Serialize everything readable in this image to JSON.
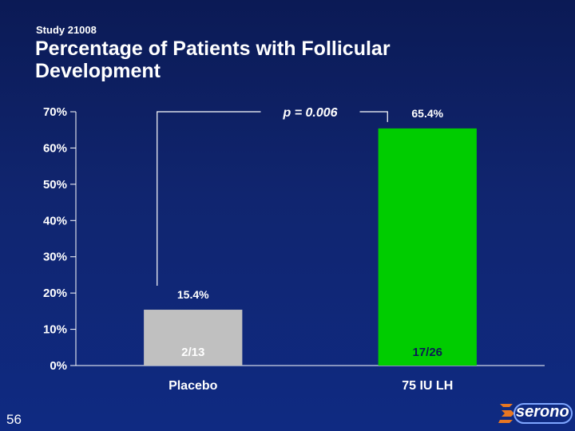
{
  "header": {
    "study": "Study 21008",
    "title": "Percentage of Patients with Follicular Development"
  },
  "page_number": "56",
  "logo": {
    "text": "serono",
    "icon": "serono-s-icon"
  },
  "colors": {
    "placebo": "#c0c0c0",
    "lh": "#00cc00",
    "background": "#10256f"
  },
  "chart_data": {
    "type": "bar",
    "categories": [
      "Placebo",
      "75 IU LH"
    ],
    "values": [
      15.4,
      65.4
    ],
    "value_labels": [
      "15.4%",
      "65.4%"
    ],
    "counts": [
      "2/13",
      "17/26"
    ],
    "yticks": [
      "0%",
      "10%",
      "20%",
      "30%",
      "40%",
      "50%",
      "60%",
      "70%"
    ],
    "ylim": [
      0,
      70
    ],
    "annotation": "p = 0.006",
    "title": "",
    "xlabel": "",
    "ylabel": ""
  }
}
